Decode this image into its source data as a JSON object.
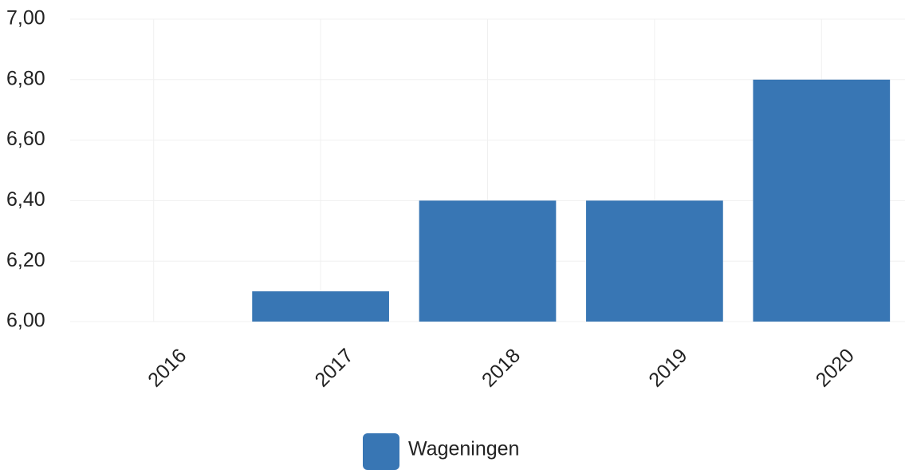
{
  "chart_data": {
    "type": "bar",
    "categories": [
      "2016",
      "2017",
      "2018",
      "2019",
      "2020"
    ],
    "series": [
      {
        "name": "Wageningen",
        "color": "#3876b4",
        "values": [
          6.0,
          6.1,
          6.4,
          6.4,
          6.8
        ]
      }
    ],
    "ylim": [
      6.0,
      7.0
    ],
    "yticks": [
      {
        "value": 6.0,
        "label": "6,00"
      },
      {
        "value": 6.2,
        "label": "6,20"
      },
      {
        "value": 6.4,
        "label": "6,40"
      },
      {
        "value": 6.6,
        "label": "6,60"
      },
      {
        "value": 6.8,
        "label": "6,80"
      },
      {
        "value": 7.0,
        "label": "7,00"
      }
    ],
    "grid": true
  }
}
